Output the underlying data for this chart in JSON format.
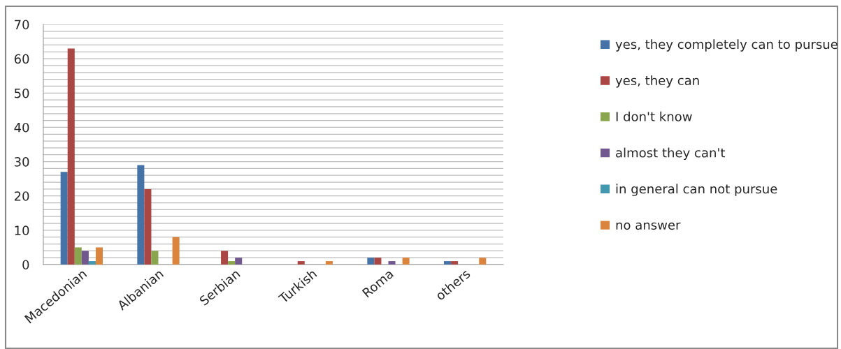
{
  "chart_data": {
    "type": "bar",
    "categories": [
      "Macedonian",
      "Albanian",
      "Serbian",
      "Turkish",
      "Roma",
      "others"
    ],
    "series": [
      {
        "name": "yes, they completely can to pursue",
        "color": "#4572a7",
        "values": [
          27,
          29,
          null,
          null,
          2,
          1
        ]
      },
      {
        "name": "yes, they can",
        "color": "#aa4643",
        "values": [
          63,
          22,
          4,
          1,
          2,
          1
        ]
      },
      {
        "name": "I don't know",
        "color": "#89a54e",
        "values": [
          5,
          4,
          1,
          null,
          null,
          null
        ]
      },
      {
        "name": "almost they can't",
        "color": "#71588f",
        "values": [
          4,
          null,
          2,
          null,
          1,
          null
        ]
      },
      {
        "name": "in general can not pursue",
        "color": "#4198af",
        "values": [
          1,
          null,
          null,
          null,
          null,
          null
        ]
      },
      {
        "name": "no answer",
        "color": "#db843d",
        "values": [
          5,
          8,
          null,
          1,
          2,
          2
        ]
      }
    ],
    "ylim": [
      0,
      70
    ],
    "yticks": [
      0,
      {
        "value": 2,
        "label": null
      },
      {
        "value": 4,
        "label": null
      },
      {
        "value": 6,
        "label": null
      },
      {
        "value": 8,
        "label": null
      },
      10,
      {
        "value": 12,
        "label": null
      },
      {
        "value": 14,
        "label": null
      },
      {
        "value": 16,
        "label": null
      },
      {
        "value": 18,
        "label": null
      },
      20,
      {
        "value": 22,
        "label": null
      },
      {
        "value": 24,
        "label": null
      },
      {
        "value": 26,
        "label": null
      },
      {
        "value": 28,
        "label": null
      },
      30,
      {
        "value": 32,
        "label": null
      },
      {
        "value": 34,
        "label": null
      },
      {
        "value": 36,
        "label": null
      },
      {
        "value": 38,
        "label": null
      },
      40,
      {
        "value": 42,
        "label": null
      },
      {
        "value": 44,
        "label": null
      },
      {
        "value": 46,
        "label": null
      },
      {
        "value": 48,
        "label": null
      },
      50,
      {
        "value": 52,
        "label": null
      },
      {
        "value": 54,
        "label": null
      },
      {
        "value": 56,
        "label": null
      },
      {
        "value": 58,
        "label": null
      },
      60,
      {
        "value": 62,
        "label": null
      },
      {
        "value": 64,
        "label": null
      },
      {
        "value": 66,
        "label": null
      },
      {
        "value": 68,
        "label": null
      },
      70
    ],
    "grid": "y",
    "legend": "right"
  }
}
